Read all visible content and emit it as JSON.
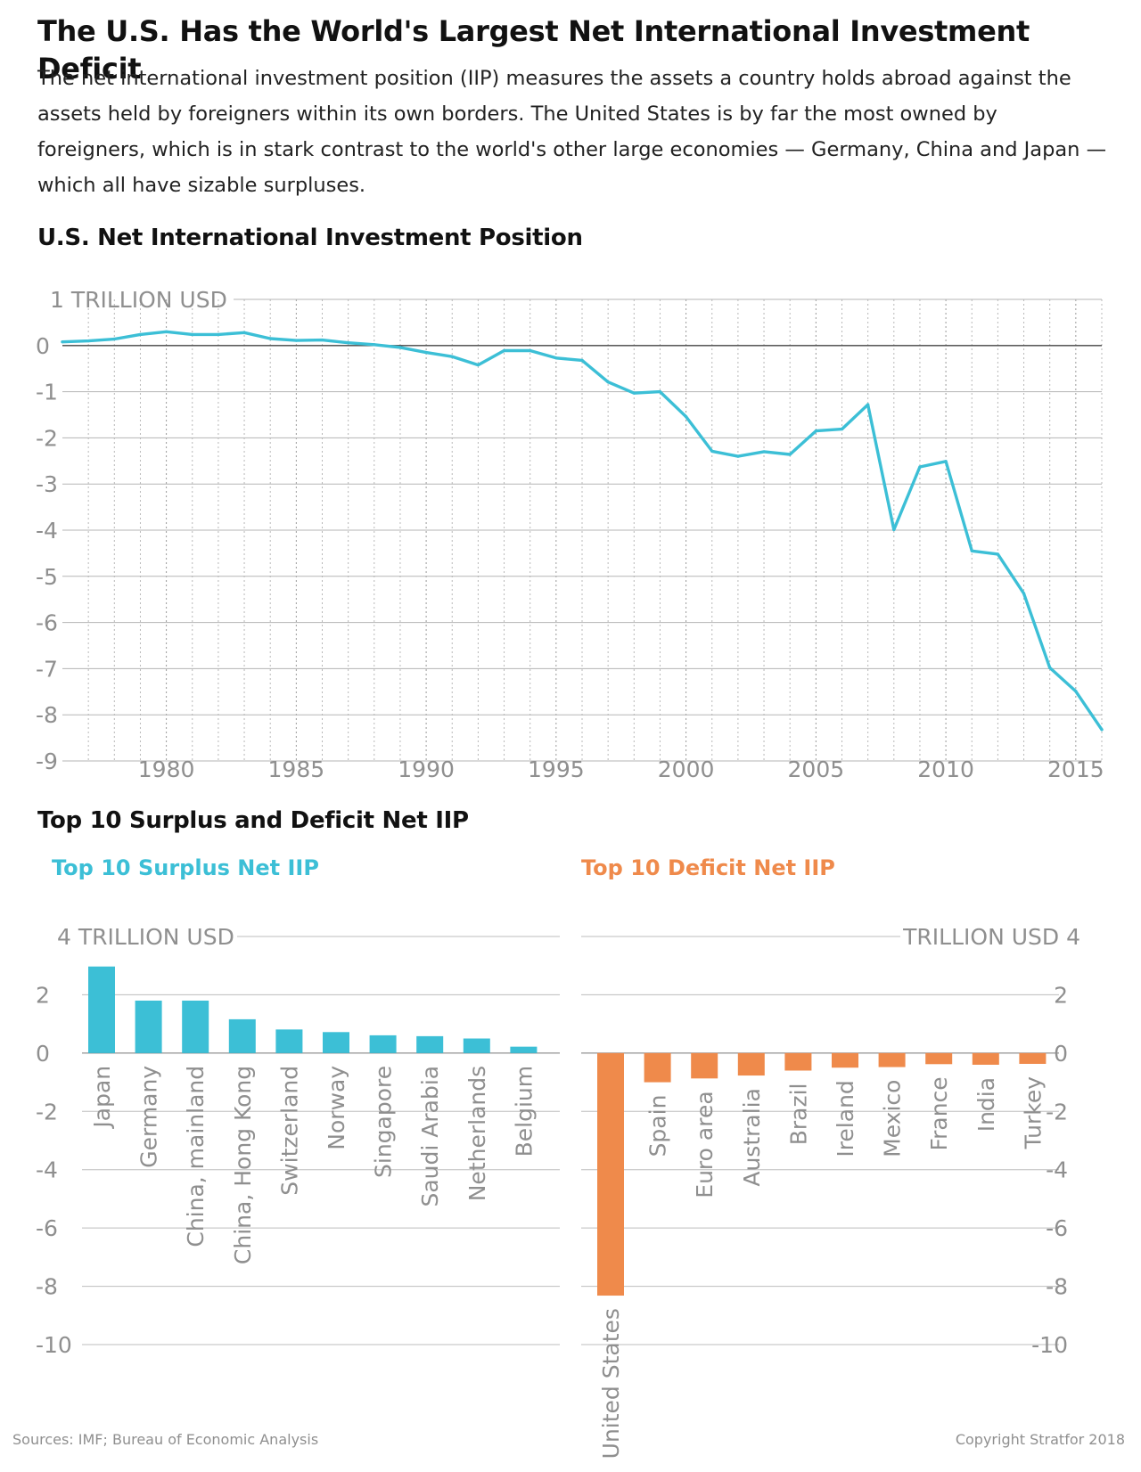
{
  "header": {
    "title": "The U.S. Has the World's Largest Net International Investment Deficit",
    "intro": "The net international investment position (IIP) measures the assets a country holds abroad against the assets held by foreigners within its own borders. The United States is by far the most owned by foreigners, which is in stark contrast to the world's other large economies — Germany, China and Japan — which all have sizable surpluses."
  },
  "colors": {
    "surplus": "#3cbfd6",
    "deficit": "#ef8a4b",
    "line": "#3cbfd6"
  },
  "chart_data": [
    {
      "type": "line",
      "title": "U.S. Net International Investment Position",
      "unit_label": "1 TRILLION USD",
      "ylim": [
        -9,
        1
      ],
      "yticks": [
        1,
        0,
        -1,
        -2,
        -3,
        -4,
        -5,
        -6,
        -7,
        -8,
        -9
      ],
      "ytick_labels": [
        "1 TRILLION USD",
        "0",
        "-1",
        "-2",
        "-3",
        "-4",
        "-5",
        "-6",
        "-7",
        "-8",
        "-9"
      ],
      "xlim": [
        1976,
        2016
      ],
      "xticks": [
        1980,
        1985,
        1990,
        1995,
        2000,
        2005,
        2010,
        2015
      ],
      "xtick_labels": [
        "1980",
        "1985",
        "1990",
        "1995",
        "2000",
        "2005",
        "2010",
        "2015"
      ],
      "grid": "dashed vertical per year, solid horizontal",
      "series": [
        {
          "x": [
            1976,
            1977,
            1978,
            1979,
            1980,
            1981,
            1982,
            1983,
            1984,
            1985,
            1986,
            1987,
            1988,
            1989,
            1990,
            1991,
            1992,
            1993,
            1994,
            1995,
            1996,
            1997,
            1998,
            1999,
            2000,
            2001,
            2002,
            2003,
            2004,
            2005,
            2006,
            2007,
            2008,
            2009,
            2010,
            2011,
            2012,
            2013,
            2014,
            2015,
            2016
          ],
          "y": [
            0.08,
            0.1,
            0.14,
            0.24,
            0.3,
            0.24,
            0.24,
            0.28,
            0.15,
            0.11,
            0.12,
            0.06,
            0.02,
            -0.04,
            -0.15,
            -0.24,
            -0.42,
            -0.11,
            -0.11,
            -0.27,
            -0.32,
            -0.79,
            -1.03,
            -1.0,
            -1.54,
            -2.29,
            -2.4,
            -2.3,
            -2.36,
            -1.85,
            -1.81,
            -1.28,
            -3.99,
            -2.63,
            -2.51,
            -4.45,
            -4.52,
            -5.37,
            -6.98,
            -7.49,
            -8.32
          ]
        }
      ]
    },
    {
      "type": "bar",
      "title": "Top 10 Surplus Net IIP",
      "unit_label": "4 TRILLION USD",
      "ylim": [
        -10,
        4
      ],
      "yticks": [
        4,
        2,
        0,
        -2,
        -4,
        -6,
        -8,
        -10
      ],
      "ytick_labels": [
        "4 TRILLION USD",
        "2",
        "0",
        "-2",
        "-4",
        "-6",
        "-8",
        "-10"
      ],
      "categories": [
        "Japan",
        "Germany",
        "China, mainland",
        "China, Hong Kong",
        "Switzerland",
        "Norway",
        "Singapore",
        "Saudi Arabia",
        "Netherlands",
        "Belgium"
      ],
      "values": [
        2.97,
        1.8,
        1.8,
        1.16,
        0.81,
        0.72,
        0.61,
        0.58,
        0.5,
        0.22
      ]
    },
    {
      "type": "bar",
      "title": "Top 10 Deficit Net IIP",
      "unit_label": "TRILLION USD 4",
      "ylim": [
        -10,
        4
      ],
      "yticks": [
        4,
        2,
        0,
        -2,
        -4,
        -6,
        -8,
        -10
      ],
      "ytick_labels": [
        "TRILLION USD 4",
        "2",
        "0",
        "-2",
        "-4",
        "-6",
        "-8",
        "-10"
      ],
      "categories": [
        "United States",
        "Spain",
        "Euro area",
        "Australia",
        "Brazil",
        "Ireland",
        "Mexico",
        "France",
        "India",
        "Turkey"
      ],
      "values": [
        -8.32,
        -1.0,
        -0.87,
        -0.77,
        -0.6,
        -0.5,
        -0.48,
        -0.38,
        -0.4,
        -0.37
      ]
    }
  ],
  "section_title": "Top 10 Surplus and Deficit Net IIP",
  "footer": {
    "sources": "Sources: IMF; Bureau of Economic Analysis",
    "copyright": "Copyright Stratfor 2018"
  }
}
